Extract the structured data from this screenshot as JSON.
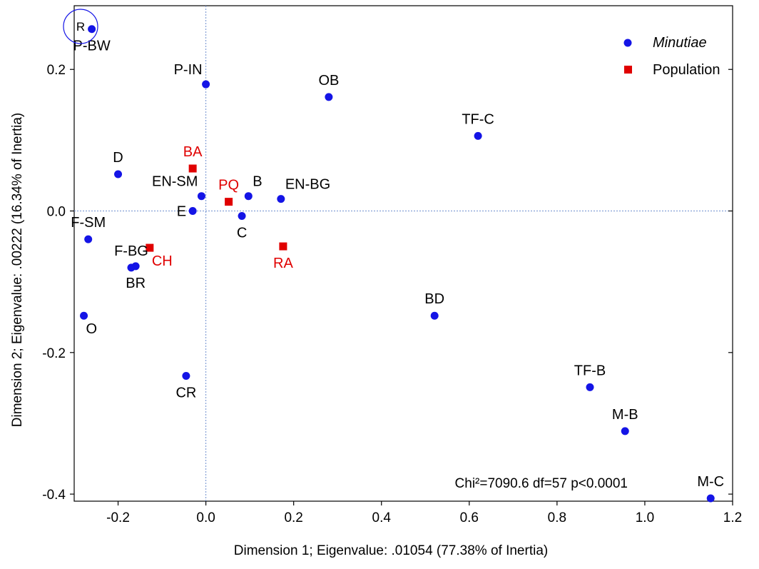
{
  "chart_data": {
    "type": "scatter",
    "title": "",
    "xlabel": "Dimension 1; Eigenvalue: .01054 (77.38% of Inertia)",
    "ylabel": "Dimension 2; Eigenvalue: .00222 (16.34% of Inertia)",
    "xlim": [
      -0.3,
      1.2
    ],
    "ylim": [
      -0.41,
      0.29
    ],
    "xticks": [
      -0.2,
      0.0,
      0.2,
      0.4,
      0.6,
      0.8,
      1.0,
      1.2
    ],
    "xtick_labels": [
      "-0.2",
      "0.0",
      "0.2",
      "0.4",
      "0.6",
      "0.8",
      "1.0",
      "1.2"
    ],
    "yticks": [
      -0.4,
      -0.2,
      0.0,
      0.2
    ],
    "ytick_labels": [
      "-0.4",
      "-0.2",
      "0.0",
      "0.2"
    ],
    "grid": false,
    "reference_lines": {
      "x": 0,
      "y": 0
    },
    "legend_position": "top-right",
    "annotation": "Chi²=7090.6 df=57 p<0.0001",
    "corner_badge": "R",
    "series": [
      {
        "name": "Minutiae",
        "name_italic": true,
        "marker": "circle",
        "color": "#1414e6",
        "label_color": "#000000",
        "points": [
          {
            "label": "P-BW",
            "x": -0.26,
            "y": 0.257,
            "label_pos": "below"
          },
          {
            "label": "P-IN",
            "x": 0.0,
            "y": 0.179,
            "label_pos": "above-left"
          },
          {
            "label": "OB",
            "x": 0.28,
            "y": 0.161,
            "label_pos": "above"
          },
          {
            "label": "TF-C",
            "x": 0.62,
            "y": 0.106,
            "label_pos": "above"
          },
          {
            "label": "D",
            "x": -0.2,
            "y": 0.052,
            "label_pos": "above"
          },
          {
            "label": "EN-SM",
            "x": -0.01,
            "y": 0.021,
            "label_pos": "above-left"
          },
          {
            "label": "B",
            "x": 0.097,
            "y": 0.021,
            "label_pos": "above-right"
          },
          {
            "label": "EN-BG",
            "x": 0.171,
            "y": 0.017,
            "label_pos": "above-right"
          },
          {
            "label": "E",
            "x": -0.03,
            "y": 0.0,
            "label_pos": "left"
          },
          {
            "label": "C",
            "x": 0.082,
            "y": -0.007,
            "label_pos": "below"
          },
          {
            "label": "F-SM",
            "x": -0.268,
            "y": -0.04,
            "label_pos": "above"
          },
          {
            "label": "F-BG",
            "x": -0.17,
            "y": -0.08,
            "label_pos": "above"
          },
          {
            "label": "BR",
            "x": -0.16,
            "y": -0.078,
            "label_pos": "below"
          },
          {
            "label": "O",
            "x": -0.278,
            "y": -0.148,
            "label_pos": "below-right"
          },
          {
            "label": "BD",
            "x": 0.521,
            "y": -0.148,
            "label_pos": "above"
          },
          {
            "label": "CR",
            "x": -0.045,
            "y": -0.233,
            "label_pos": "below"
          },
          {
            "label": "TF-B",
            "x": 0.875,
            "y": -0.249,
            "label_pos": "above"
          },
          {
            "label": "M-B",
            "x": 0.955,
            "y": -0.311,
            "label_pos": "above"
          },
          {
            "label": "M-C",
            "x": 1.15,
            "y": -0.406,
            "label_pos": "above"
          }
        ]
      },
      {
        "name": "Population",
        "name_italic": false,
        "marker": "square",
        "color": "#e00000",
        "label_color": "#e00000",
        "points": [
          {
            "label": "BA",
            "x": -0.03,
            "y": 0.06,
            "label_pos": "above"
          },
          {
            "label": "PQ",
            "x": 0.052,
            "y": 0.013,
            "label_pos": "above"
          },
          {
            "label": "CH",
            "x": -0.128,
            "y": -0.052,
            "label_pos": "below-right"
          },
          {
            "label": "RA",
            "x": 0.176,
            "y": -0.05,
            "label_pos": "below"
          }
        ]
      }
    ]
  }
}
